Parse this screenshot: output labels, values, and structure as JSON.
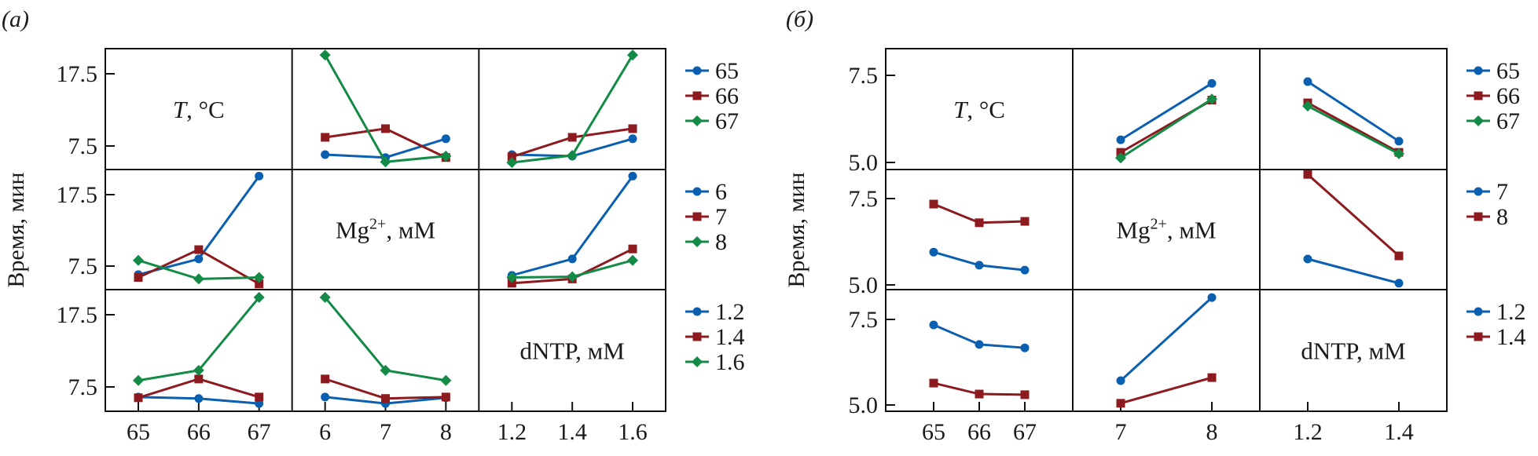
{
  "figure": {
    "panel_labels": [
      "(a)",
      "(б)"
    ],
    "ylabel": "Время, мин",
    "colors": {
      "s0": "#0a5fb0",
      "s1": "#8c1a1e",
      "s2": "#138a45"
    }
  },
  "chart_data": [
    {
      "type": "line",
      "title": "(a)",
      "layout": "interaction-matrix 3x3",
      "ylabel": "Время, мин",
      "yticks": [
        7.5,
        17.5
      ],
      "ylim": [
        3.9,
        21.0
      ],
      "factors": [
        {
          "name": "T",
          "label": "T, °C",
          "levels": [
            "65",
            "66",
            "67"
          ],
          "legend": [
            "65",
            "66",
            "67"
          ]
        },
        {
          "name": "Mg",
          "label": "Mg2+, мМ",
          "levels": [
            "6",
            "7",
            "8"
          ],
          "legend": [
            "6",
            "7",
            "8"
          ]
        },
        {
          "name": "dNTP",
          "label": "dNTP, мМ",
          "levels": [
            "1.2",
            "1.4",
            "1.6"
          ],
          "legend": [
            "1.2",
            "1.4",
            "1.6"
          ]
        }
      ],
      "cells": [
        {
          "row": 0,
          "col": 1,
          "series_factor": "T",
          "x_factor": "Mg",
          "series": [
            {
              "name": "65",
              "values": [
                6.3,
                5.9,
                8.5
              ]
            },
            {
              "name": "66",
              "values": [
                8.7,
                9.9,
                5.9
              ]
            },
            {
              "name": "67",
              "values": [
                20.1,
                5.3,
                6.1
              ]
            }
          ]
        },
        {
          "row": 0,
          "col": 2,
          "series_factor": "T",
          "x_factor": "dNTP",
          "series": [
            {
              "name": "65",
              "values": [
                6.3,
                6.1,
                8.5
              ]
            },
            {
              "name": "66",
              "values": [
                6.0,
                8.7,
                9.9
              ]
            },
            {
              "name": "67",
              "values": [
                5.2,
                6.2,
                20.1
              ]
            }
          ]
        },
        {
          "row": 1,
          "col": 0,
          "series_factor": "Mg",
          "x_factor": "T",
          "series": [
            {
              "name": "6",
              "values": [
                6.3,
                8.5,
                20.1
              ]
            },
            {
              "name": "7",
              "values": [
                5.9,
                9.8,
                5.0
              ]
            },
            {
              "name": "8",
              "values": [
                8.3,
                5.7,
                5.9
              ]
            }
          ]
        },
        {
          "row": 1,
          "col": 2,
          "series_factor": "Mg",
          "x_factor": "dNTP",
          "series": [
            {
              "name": "6",
              "values": [
                6.2,
                8.5,
                20.1
              ]
            },
            {
              "name": "7",
              "values": [
                5.1,
                5.7,
                9.9
              ]
            },
            {
              "name": "8",
              "values": [
                5.9,
                6.0,
                8.3
              ]
            }
          ]
        },
        {
          "row": 2,
          "col": 0,
          "series_factor": "dNTP",
          "x_factor": "T",
          "series": [
            {
              "name": "1.2",
              "values": [
                6.1,
                5.9,
                5.2
              ]
            },
            {
              "name": "1.4",
              "values": [
                6.0,
                8.6,
                6.1
              ]
            },
            {
              "name": "1.6",
              "values": [
                8.4,
                9.8,
                19.9
              ]
            }
          ]
        },
        {
          "row": 2,
          "col": 1,
          "series_factor": "dNTP",
          "x_factor": "Mg",
          "series": [
            {
              "name": "1.2",
              "values": [
                6.1,
                5.2,
                6.0
              ]
            },
            {
              "name": "1.4",
              "values": [
                8.6,
                5.9,
                6.1
              ]
            },
            {
              "name": "1.6",
              "values": [
                19.9,
                9.8,
                8.4
              ]
            }
          ]
        }
      ]
    },
    {
      "type": "line",
      "title": "(б)",
      "layout": "interaction-matrix 3x3",
      "ylabel": "Время, мин",
      "yticks": [
        5.0,
        7.5
      ],
      "ylim": [
        4.8,
        8.3
      ],
      "factors": [
        {
          "name": "T",
          "label": "T, °C",
          "levels": [
            "65",
            "66",
            "67"
          ],
          "legend": [
            "65",
            "66",
            "67"
          ]
        },
        {
          "name": "Mg",
          "label": "Mg2+, мМ",
          "levels": [
            "7",
            "8"
          ],
          "legend": [
            "7",
            "8"
          ]
        },
        {
          "name": "dNTP",
          "label": "dNTP, мМ",
          "levels": [
            "1.2",
            "1.4"
          ],
          "legend": [
            "1.2",
            "1.4"
          ]
        }
      ],
      "cells": [
        {
          "row": 0,
          "col": 1,
          "series_factor": "T",
          "x_factor": "Mg",
          "series": [
            {
              "name": "65",
              "values": [
                5.65,
                7.27
              ]
            },
            {
              "name": "66",
              "values": [
                5.29,
                6.79
              ]
            },
            {
              "name": "67",
              "values": [
                5.13,
                6.82
              ]
            }
          ]
        },
        {
          "row": 0,
          "col": 2,
          "series_factor": "T",
          "x_factor": "dNTP",
          "series": [
            {
              "name": "65",
              "values": [
                7.32,
                5.61
              ]
            },
            {
              "name": "66",
              "values": [
                6.71,
                5.29
              ]
            },
            {
              "name": "67",
              "values": [
                6.62,
                5.25
              ]
            }
          ]
        },
        {
          "row": 1,
          "col": 0,
          "series_factor": "Mg",
          "x_factor": "T",
          "series": [
            {
              "name": "7",
              "values": [
                5.95,
                5.57,
                5.43
              ]
            },
            {
              "name": "8",
              "values": [
                7.34,
                6.8,
                6.84
              ]
            }
          ]
        },
        {
          "row": 1,
          "col": 2,
          "series_factor": "Mg",
          "x_factor": "dNTP",
          "series": [
            {
              "name": "7",
              "values": [
                5.75,
                5.05
              ]
            },
            {
              "name": "8",
              "values": [
                8.2,
                5.84
              ]
            }
          ]
        },
        {
          "row": 2,
          "col": 0,
          "series_factor": "dNTP",
          "x_factor": "T",
          "series": [
            {
              "name": "1.2",
              "values": [
                7.34,
                6.77,
                6.67
              ]
            },
            {
              "name": "1.4",
              "values": [
                5.64,
                5.32,
                5.3
              ]
            }
          ]
        },
        {
          "row": 2,
          "col": 1,
          "series_factor": "dNTP",
          "x_factor": "Mg",
          "series": [
            {
              "name": "1.2",
              "values": [
                5.71,
                8.14
              ]
            },
            {
              "name": "1.4",
              "values": [
                5.05,
                5.8
              ]
            }
          ]
        }
      ]
    }
  ]
}
